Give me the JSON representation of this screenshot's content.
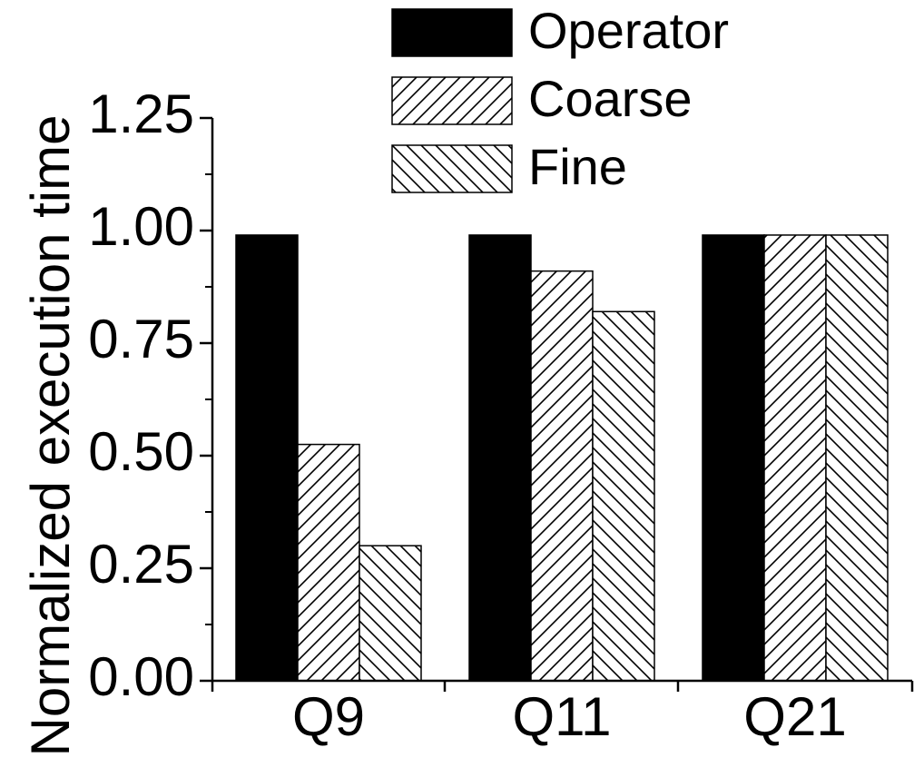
{
  "chart_data": {
    "type": "bar",
    "title": "",
    "xlabel": "",
    "ylabel": "Normalized execution time",
    "categories": [
      "Q9",
      "Q11",
      "Q21"
    ],
    "series": [
      {
        "name": "Operator",
        "values": [
          0.99,
          0.99,
          0.99
        ],
        "pattern": "solid"
      },
      {
        "name": "Coarse",
        "values": [
          0.525,
          0.91,
          0.99
        ],
        "pattern": "forward-hatch"
      },
      {
        "name": "Fine",
        "values": [
          0.3,
          0.82,
          0.99
        ],
        "pattern": "back-hatch"
      }
    ],
    "ylim": [
      0,
      1.25
    ],
    "yticks": [
      0,
      0.25,
      0.5,
      0.75,
      1.0,
      1.25
    ],
    "ytick_labels": [
      "0.00",
      "0.25",
      "0.50",
      "0.75",
      "1.00",
      "1.25"
    ],
    "grid": false,
    "legend_position": "top-right",
    "colors": {
      "bar_fill": "#000000",
      "hatch_bg": "#ffffff",
      "stroke": "#000000"
    }
  }
}
